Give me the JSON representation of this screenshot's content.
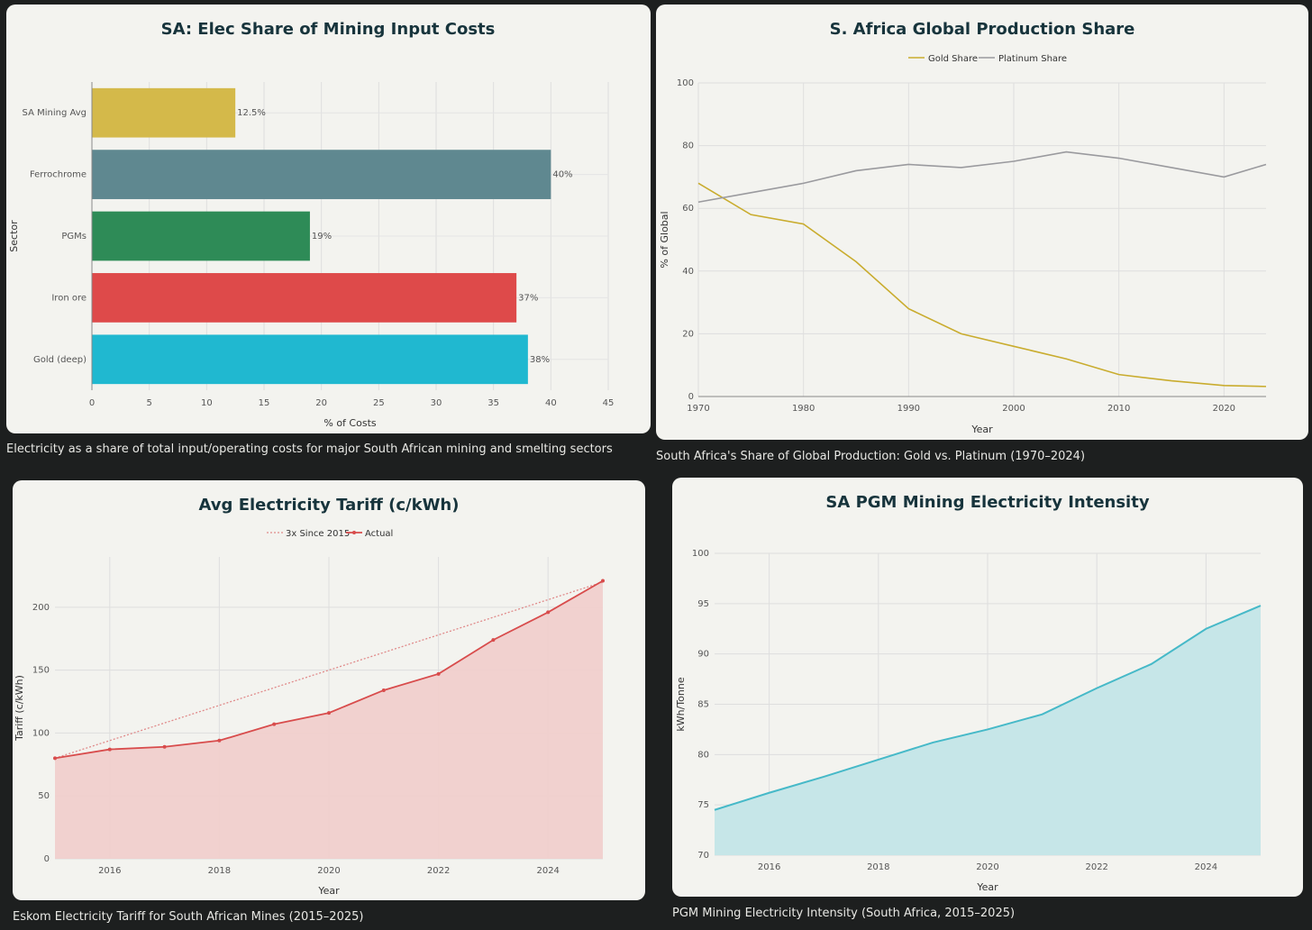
{
  "charts": [
    {
      "type": "bar",
      "orientation": "horizontal",
      "title": "SA: Elec Share of Mining Input Costs",
      "xlabel": "% of Costs",
      "ylabel": "Sector",
      "xlim": [
        0,
        45
      ],
      "xticks": [
        0,
        5,
        10,
        15,
        20,
        25,
        30,
        35,
        40,
        45
      ],
      "categories": [
        "SA Mining Avg",
        "Ferrochrome",
        "PGMs",
        "Iron ore",
        "Gold (deep)"
      ],
      "values": [
        12.5,
        40,
        19,
        37,
        38
      ],
      "value_labels": [
        "12.5%",
        "40%",
        "19%",
        "37%",
        "38%"
      ],
      "colors": [
        "#d4b94a",
        "#5f8890",
        "#2e8b57",
        "#de4a4a",
        "#20b8d0"
      ],
      "grid": true
    },
    {
      "type": "line",
      "title": "S. Africa Global Production Share",
      "xlabel": "Year",
      "ylabel": "% of Global",
      "xlim": [
        1970,
        2024
      ],
      "ylim": [
        0,
        100
      ],
      "xticks": [
        1970,
        1980,
        1990,
        2000,
        2010,
        2020
      ],
      "yticks": [
        0,
        20,
        40,
        60,
        80,
        100
      ],
      "legend_position": "top",
      "grid": true,
      "series": [
        {
          "name": "Gold Share",
          "color": "#c9ac2e",
          "x": [
            1970,
            1975,
            1980,
            1985,
            1990,
            1995,
            2000,
            2005,
            2010,
            2015,
            2020,
            2024
          ],
          "y": [
            68,
            58,
            55,
            43,
            28,
            20,
            16,
            12,
            7,
            5,
            3.5,
            3.2
          ]
        },
        {
          "name": "Platinum Share",
          "color": "#9a9a9e",
          "x": [
            1970,
            1975,
            1980,
            1985,
            1990,
            1995,
            2000,
            2005,
            2010,
            2015,
            2020,
            2024
          ],
          "y": [
            62,
            65,
            68,
            72,
            74,
            73,
            75,
            78,
            76,
            73,
            70,
            74
          ]
        }
      ]
    },
    {
      "type": "area",
      "title": "Avg Electricity Tariff (c/kWh)",
      "xlabel": "Year",
      "ylabel": "Tariff (c/kWh)",
      "xlim": [
        2015,
        2025
      ],
      "ylim": [
        0,
        240
      ],
      "xticks": [
        2016,
        2018,
        2020,
        2022,
        2024
      ],
      "yticks": [
        0,
        50,
        100,
        150,
        200
      ],
      "legend_position": "top",
      "grid": true,
      "series": [
        {
          "name": "3x Since 2015",
          "color": "#e08a8a",
          "style": "dotted",
          "x": [
            2015,
            2025
          ],
          "y": [
            80,
            220
          ]
        },
        {
          "name": "Actual",
          "color": "#d84c4c",
          "fill": "#f0cfcc",
          "x": [
            2015,
            2016,
            2017,
            2018,
            2019,
            2020,
            2021,
            2022,
            2023,
            2024,
            2025
          ],
          "y": [
            80,
            87,
            89,
            94,
            107,
            116,
            134,
            147,
            174,
            196,
            221
          ]
        }
      ]
    },
    {
      "type": "area",
      "title": "SA PGM Mining Electricity Intensity",
      "xlabel": "Year",
      "ylabel": "kWh/Tonne",
      "xlim": [
        2015,
        2025
      ],
      "ylim": [
        70,
        100
      ],
      "xticks": [
        2016,
        2018,
        2020,
        2022,
        2024
      ],
      "yticks": [
        70,
        75,
        80,
        85,
        90,
        95,
        100
      ],
      "grid": true,
      "series": [
        {
          "name": "",
          "color": "#46b9c8",
          "fill": "#c6e6e8",
          "x": [
            2015,
            2016,
            2017,
            2018,
            2019,
            2020,
            2021,
            2022,
            2023,
            2024,
            2025
          ],
          "y": [
            74.5,
            76.2,
            77.8,
            79.5,
            81.2,
            82.5,
            84,
            86.6,
            89,
            92.5,
            94.8
          ]
        }
      ]
    }
  ],
  "captions": [
    "Electricity as a share of total input/operating costs for major South African mining and smelting sectors",
    "South Africa's Share of Global Production: Gold vs. Platinum (1970–2024)",
    "Eskom Electricity Tariff for South African Mines (2015–2025)",
    "PGM Mining Electricity Intensity (South Africa, 2015–2025)"
  ]
}
